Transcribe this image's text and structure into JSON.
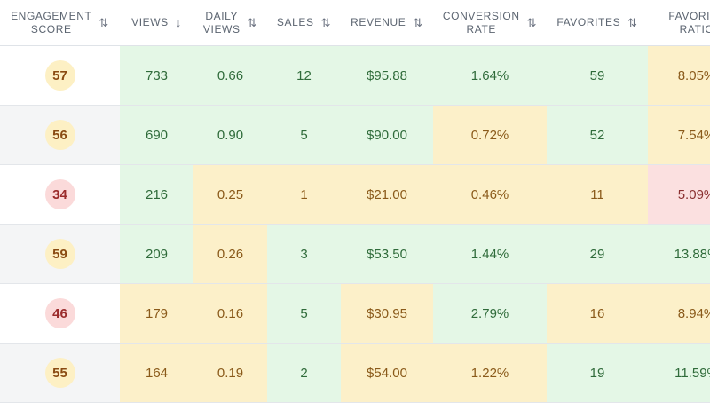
{
  "columns": [
    {
      "label_line1": "ENGAGEMENT",
      "label_line2": "SCORE",
      "sort_icon": "sort-both-icon"
    },
    {
      "label_line1": "VIEWS",
      "label_line2": "",
      "sort_icon": "sort-down-icon"
    },
    {
      "label_line1": "DAILY",
      "label_line2": "VIEWS",
      "sort_icon": "sort-both-icon"
    },
    {
      "label_line1": "SALES",
      "label_line2": "",
      "sort_icon": "sort-both-icon"
    },
    {
      "label_line1": "REVENUE",
      "label_line2": "",
      "sort_icon": "sort-both-icon"
    },
    {
      "label_line1": "CONVERSION",
      "label_line2": "RATE",
      "sort_icon": "sort-both-icon"
    },
    {
      "label_line1": "FAVORITES",
      "label_line2": "",
      "sort_icon": "sort-both-icon"
    },
    {
      "label_line1": "FAVORITE",
      "label_line2": "RATIO",
      "sort_icon": ""
    }
  ],
  "sort_glyphs": {
    "sort-both-icon": "⇅",
    "sort-down-icon": "↓"
  },
  "colors": {
    "good_bg": "#e4f7e6",
    "warn_bg": "#fcf0c9",
    "bad_bg": "#fbe0e0",
    "score_mid_bg": "#fdf0c4",
    "score_low_bg": "#fbdada"
  },
  "rows": [
    {
      "score": "57",
      "score_level": "mid",
      "views": "733",
      "daily_views": "0.66",
      "sales": "12",
      "revenue": "$95.88",
      "conversion_rate": "1.64%",
      "favorites": "59",
      "favorite_ratio": "8.05%",
      "levels": [
        "good",
        "good",
        "good",
        "good",
        "good",
        "good",
        "warn"
      ]
    },
    {
      "score": "56",
      "score_level": "mid",
      "views": "690",
      "daily_views": "0.90",
      "sales": "5",
      "revenue": "$90.00",
      "conversion_rate": "0.72%",
      "favorites": "52",
      "favorite_ratio": "7.54%",
      "levels": [
        "good",
        "good",
        "good",
        "good",
        "warn",
        "good",
        "warn"
      ]
    },
    {
      "score": "34",
      "score_level": "low",
      "views": "216",
      "daily_views": "0.25",
      "sales": "1",
      "revenue": "$21.00",
      "conversion_rate": "0.46%",
      "favorites": "11",
      "favorite_ratio": "5.09%",
      "levels": [
        "good",
        "warn",
        "warn",
        "warn",
        "warn",
        "warn",
        "bad"
      ]
    },
    {
      "score": "59",
      "score_level": "mid",
      "views": "209",
      "daily_views": "0.26",
      "sales": "3",
      "revenue": "$53.50",
      "conversion_rate": "1.44%",
      "favorites": "29",
      "favorite_ratio": "13.88%",
      "levels": [
        "good",
        "warn",
        "good",
        "good",
        "good",
        "good",
        "good"
      ]
    },
    {
      "score": "46",
      "score_level": "low",
      "views": "179",
      "daily_views": "0.16",
      "sales": "5",
      "revenue": "$30.95",
      "conversion_rate": "2.79%",
      "favorites": "16",
      "favorite_ratio": "8.94%",
      "levels": [
        "warn",
        "warn",
        "good",
        "warn",
        "good",
        "warn",
        "warn"
      ]
    },
    {
      "score": "55",
      "score_level": "mid",
      "views": "164",
      "daily_views": "0.19",
      "sales": "2",
      "revenue": "$54.00",
      "conversion_rate": "1.22%",
      "favorites": "19",
      "favorite_ratio": "11.59%",
      "levels": [
        "warn",
        "warn",
        "good",
        "warn",
        "warn",
        "good",
        "good"
      ]
    }
  ]
}
